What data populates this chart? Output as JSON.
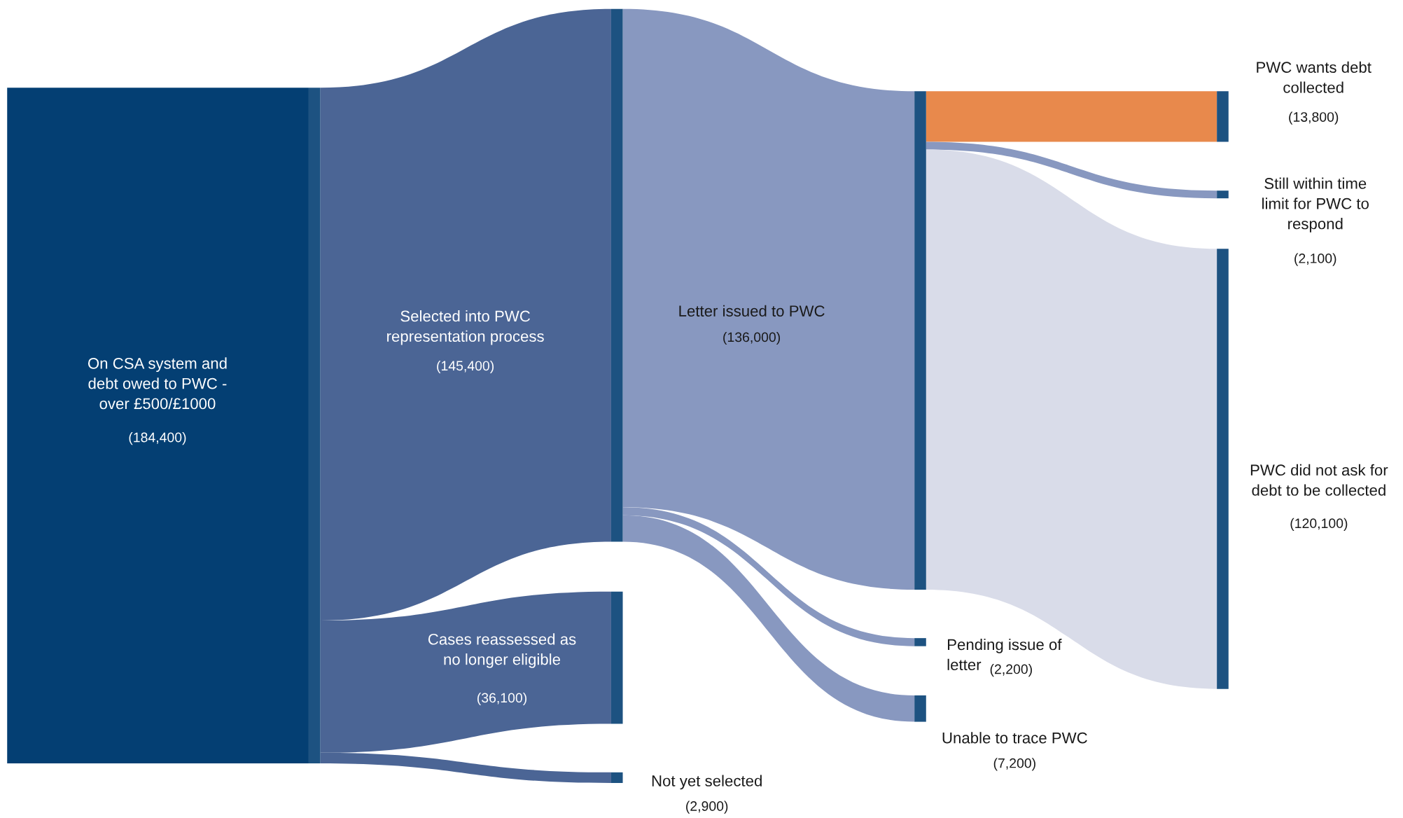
{
  "chart_data": {
    "type": "other",
    "categories": [
      "On CSA system and\ndebt owed to PWC -\nover £500/£1000",
      "Selected into PWC\nrepresentation process",
      "Cases reassessed as\nno longer eligible",
      "Not yet selected",
      "Letter issued to PWC",
      "Pending issue of\nletter",
      "Unable to trace PWC",
      "PWC wants debt\ncollected",
      "Still within time\nlimit for PWC to\nrespond",
      "PWC did not ask for\ndebt to be collected"
    ],
    "values": [
      184400,
      145400,
      36100,
      2900,
      136000,
      2200,
      7200,
      13800,
      2100,
      120100
    ],
    "value_labels": [
      "(184,400)",
      "(145,400)",
      "(36,100)",
      "(2,900)",
      "(136,000)",
      "(2,200)",
      "(7,200)",
      "(13,800)",
      "(2,100)",
      "(120,100)"
    ],
    "colors": [
      "#043f73",
      "#4b6595",
      "#4b6595",
      "#4b6595",
      "#8898c0",
      "#8898c0",
      "#8898c0",
      "#e8894c",
      "#8898c0",
      "#d9dce9"
    ]
  }
}
